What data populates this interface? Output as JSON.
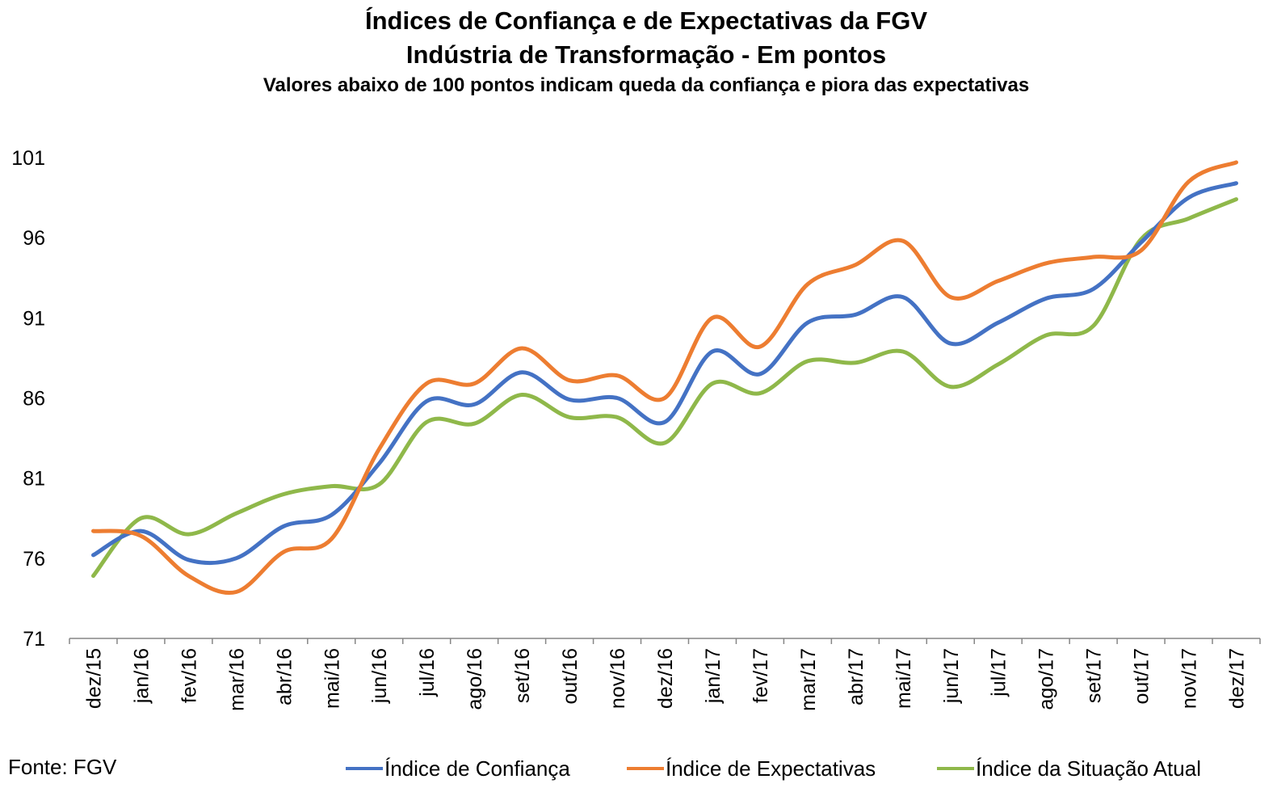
{
  "chart_data": {
    "type": "line",
    "title": "Índices de Confiança e de Expectativas da FGV",
    "subtitle": "Indústria de Transformação - Em pontos",
    "note": "Valores abaixo de 100 pontos indicam queda da confiança e piora das expectativas",
    "source": "Fonte: FGV",
    "categories": [
      "dez/15",
      "jan/16",
      "fev/16",
      "mar/16",
      "abr/16",
      "mai/16",
      "jun/16",
      "jul/16",
      "ago/16",
      "set/16",
      "out/16",
      "nov/16",
      "dez/16",
      "jan/17",
      "fev/17",
      "mar/17",
      "abr/17",
      "mai/17",
      "jun/17",
      "jul/17",
      "ago/17",
      "set/17",
      "out/17",
      "nov/17",
      "dez/17"
    ],
    "yticks": [
      71,
      76,
      81,
      86,
      91,
      96,
      101
    ],
    "ylim": [
      71,
      101
    ],
    "grid": false,
    "legend_position": "bottom-right",
    "series": [
      {
        "name": "Índice de Confiança",
        "color": "#4472C4",
        "values": [
          76.2,
          77.7,
          75.9,
          76.0,
          78.0,
          78.7,
          81.9,
          85.8,
          85.6,
          87.6,
          85.9,
          86.0,
          84.5,
          88.9,
          87.5,
          90.7,
          91.2,
          92.3,
          89.4,
          90.7,
          92.2,
          92.8,
          95.7,
          98.5,
          99.4
        ]
      },
      {
        "name": "Índice de Expectativas",
        "color": "#ED7D31",
        "values": [
          77.7,
          77.4,
          74.9,
          73.9,
          76.4,
          77.2,
          82.8,
          86.9,
          86.9,
          89.1,
          87.1,
          87.4,
          86.0,
          91.0,
          89.2,
          93.1,
          94.3,
          95.8,
          92.3,
          93.3,
          94.4,
          94.8,
          95.2,
          99.5,
          100.7
        ]
      },
      {
        "name": "Índice da Situação Atual",
        "color": "#8FB84A",
        "values": [
          74.9,
          78.5,
          77.5,
          78.8,
          80.0,
          80.5,
          80.6,
          84.5,
          84.4,
          86.2,
          84.8,
          84.8,
          83.2,
          86.9,
          86.3,
          88.3,
          88.2,
          88.9,
          86.7,
          88.1,
          89.9,
          90.5,
          95.9,
          97.2,
          98.4
        ]
      }
    ]
  }
}
